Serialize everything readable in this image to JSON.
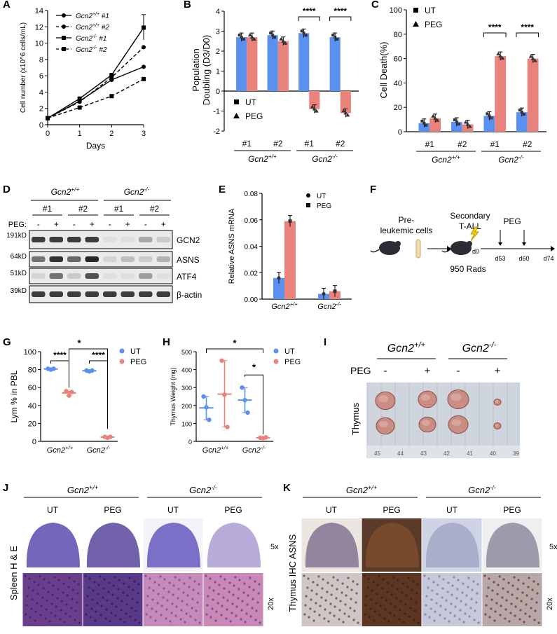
{
  "panels": {
    "A": {
      "letter": "A",
      "chart_data": {
        "type": "line",
        "xlabel": "Days",
        "ylabel": "Cell number (x10^6 cells/mL)",
        "x": [
          0,
          1,
          2,
          3
        ],
        "xlim": [
          0,
          3
        ],
        "ylim": [
          0,
          14
        ],
        "yticks": [
          "0",
          "2",
          "4",
          "6",
          "8",
          "10",
          "12",
          "14"
        ],
        "xticks": [
          "0",
          "1",
          "2",
          "3"
        ],
        "series": [
          {
            "name": "Gcn2+/+ #1",
            "values": [
              0.8,
              2.9,
              5.5,
              7.1
            ],
            "marker": "circle",
            "dash": false
          },
          {
            "name": "Gcn2+/+ #2",
            "values": [
              0.8,
              2.8,
              5.8,
              9.5
            ],
            "marker": "circle",
            "dash": true
          },
          {
            "name": "Gcn2-/- #1",
            "values": [
              0.8,
              3.2,
              6.1,
              11.9
            ],
            "marker": "square",
            "dash": false
          },
          {
            "name": "Gcn2-/- #2",
            "values": [
              0.8,
              2.1,
              3.5,
              5.6
            ],
            "marker": "square",
            "dash": true
          }
        ],
        "legend": [
          "Gcn2+/+ #1",
          "Gcn2+/+ #2",
          "Gcn2-/- #1",
          "Gcn2-/- #2"
        ]
      }
    },
    "B": {
      "letter": "B",
      "chart_data": {
        "type": "bar",
        "ylabel": "Population Doubling (D3/D0)",
        "ylim": [
          -2,
          4
        ],
        "yticks": [
          "-2",
          "-1",
          "0",
          "1",
          "2",
          "3",
          "4"
        ],
        "categories": [
          "#1",
          "#2",
          "#1",
          "#2"
        ],
        "groups": [
          "Gcn2+/+",
          "Gcn2-/-"
        ],
        "series": [
          {
            "name": "UT",
            "values": [
              2.7,
              2.8,
              2.9,
              2.7
            ],
            "color": "#5b8ff0"
          },
          {
            "name": "PEG",
            "values": [
              2.7,
              2.5,
              -0.9,
              -1.1
            ],
            "color": "#e9827b"
          }
        ],
        "significance": [
          "****",
          "****"
        ]
      }
    },
    "C": {
      "letter": "C",
      "chart_data": {
        "type": "bar",
        "ylabel": "Cell Death(%)",
        "ylim": [
          0,
          100
        ],
        "yticks": [
          "0",
          "20",
          "40",
          "60",
          "80",
          "100"
        ],
        "categories": [
          "#1",
          "#2",
          "#1",
          "#2"
        ],
        "groups": [
          "Gcn2+/+",
          "Gcn2-/-"
        ],
        "series": [
          {
            "name": "UT",
            "values": [
              7,
              8,
              13,
              16
            ],
            "color": "#5b8ff0"
          },
          {
            "name": "PEG",
            "values": [
              11,
              6,
              62,
              60
            ],
            "color": "#e9827b"
          }
        ],
        "significance": [
          "****",
          "****"
        ]
      }
    },
    "D": {
      "letter": "D",
      "genotypes": [
        "Gcn2+/+",
        "Gcn2-/-"
      ],
      "clones": [
        "#1",
        "#2",
        "#1",
        "#2"
      ],
      "peg_label": "PEG:",
      "peg_signs": [
        "-",
        "+",
        "-",
        "+",
        "-",
        "+",
        "-",
        "+"
      ],
      "bands": [
        {
          "size": "191kD",
          "name": "GCN2"
        },
        {
          "size": "64kD",
          "name": "ASNS"
        },
        {
          "size": "51kD",
          "name": "ATF4"
        },
        {
          "size": "39kD",
          "name": "β-actin"
        }
      ]
    },
    "E": {
      "letter": "E",
      "chart_data": {
        "type": "bar",
        "ylabel": "Relative ASNS mRNA",
        "ylim": [
          0,
          0.08
        ],
        "yticks": [
          "0.00",
          "0.02",
          "0.04",
          "0.06",
          "0.08"
        ],
        "categories": [
          "Gcn2+/+",
          "Gcn2-/-"
        ],
        "series": [
          {
            "name": "UT",
            "values": [
              0.016,
              0.004
            ],
            "color": "#5b8ff0"
          },
          {
            "name": "PEG",
            "values": [
              0.059,
              0.006
            ],
            "color": "#e9827b"
          }
        ]
      }
    },
    "F": {
      "letter": "F",
      "pre_label": "Pre-\nleukemic cells",
      "secondary_label": "Secondary\nT-ALL",
      "rads_label": "950 Rads",
      "peg_label": "PEG",
      "days": [
        "d0",
        "d53",
        "d60",
        "d74"
      ]
    },
    "G": {
      "letter": "G",
      "chart_data": {
        "type": "scatter",
        "ylabel": "Lym % in  PBL",
        "ylim": [
          0,
          100
        ],
        "yticks": [
          "0",
          "20",
          "40",
          "60",
          "80",
          "100"
        ],
        "categories": [
          "Gcn2+/+",
          "Gcn2-/-"
        ],
        "series": [
          {
            "name": "UT",
            "values": [
              [
                81,
                80,
                81
              ],
              [
                79,
                78,
                79
              ]
            ],
            "color": "#5b8ff0"
          },
          {
            "name": "PEG",
            "values": [
              [
                56,
                51,
                55
              ],
              [
                5,
                4,
                5
              ]
            ],
            "color": "#e9827b"
          }
        ],
        "significance": [
          "****",
          "****",
          "*"
        ]
      }
    },
    "H": {
      "letter": "H",
      "chart_data": {
        "type": "scatter",
        "ylabel": "Thymus Weight (mg)",
        "ylim": [
          0,
          500
        ],
        "yticks": [
          "0",
          "100",
          "200",
          "300",
          "400",
          "500"
        ],
        "categories": [
          "Gcn2+/+",
          "Gcn2-/-"
        ],
        "series": [
          {
            "name": "UT",
            "values": [
              [
                250,
                190,
                120
              ],
              [
                300,
                230,
                160
              ]
            ],
            "color": "#5b8ff0"
          },
          {
            "name": "PEG",
            "values": [
              [
                450,
                260,
                80
              ],
              [
                20,
                18,
                22
              ]
            ],
            "color": "#e9827b"
          }
        ],
        "significance": [
          "*",
          "*"
        ]
      }
    },
    "I": {
      "letter": "I",
      "genotypes": [
        "Gcn2+/+",
        "Gcn2-/-"
      ],
      "peg_label": "PEG",
      "peg_signs": [
        "-",
        "+",
        "-",
        "+"
      ],
      "tissue_label": "Thymus",
      "ruler": [
        "45",
        "44",
        "43",
        "42",
        "41",
        "40",
        "39"
      ]
    },
    "J": {
      "letter": "J",
      "genotypes": [
        "Gcn2+/+",
        "Gcn2-/-"
      ],
      "conditions": [
        "UT",
        "PEG",
        "UT",
        "PEG"
      ],
      "side_label": "Spleen H & E",
      "mags": [
        "5x",
        "20x"
      ]
    },
    "K": {
      "letter": "K",
      "genotypes": [
        "Gcn2+/+",
        "Gcn2-/-"
      ],
      "conditions": [
        "UT",
        "PEG",
        "UT",
        "PEG"
      ],
      "side_label": "Thymus IHC ASNS",
      "mags": [
        "5x",
        "20x"
      ]
    }
  }
}
